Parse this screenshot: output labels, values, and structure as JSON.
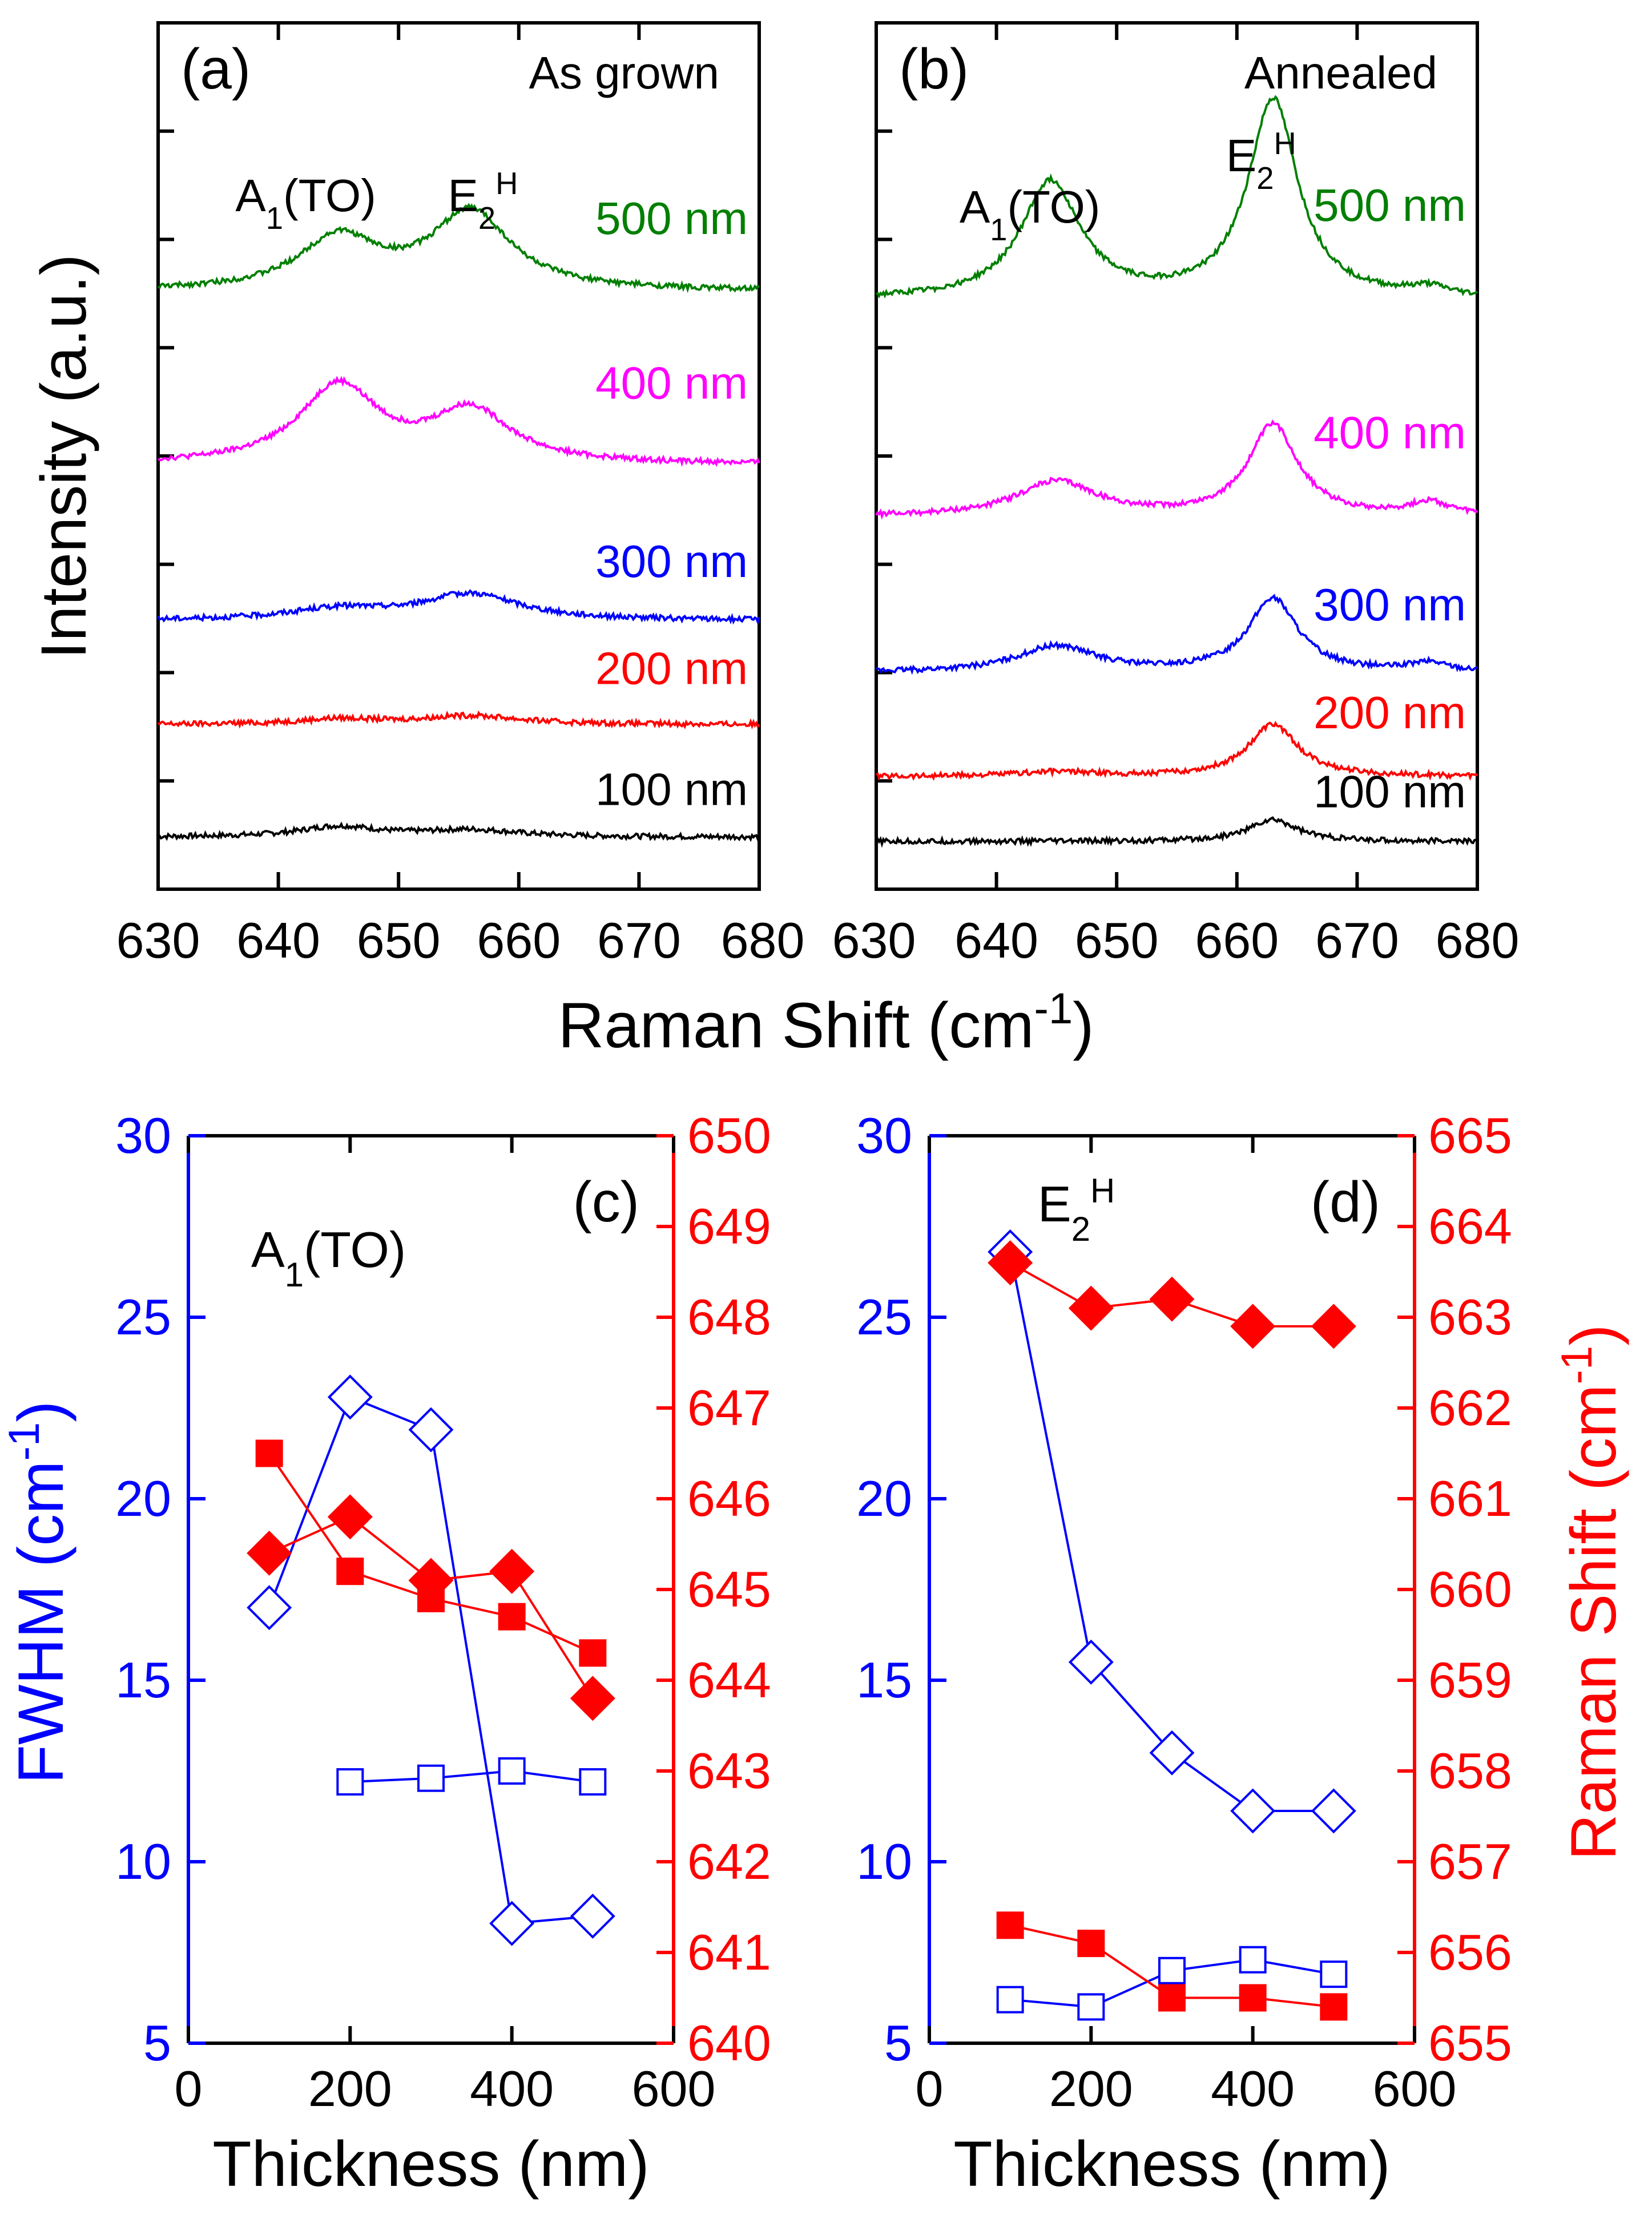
{
  "chart_data": [
    {
      "id": "a",
      "type": "line",
      "panel_label": "(a)",
      "condition": "As grown",
      "x_ticks": [
        "630",
        "640",
        "650",
        "660",
        "670",
        "680"
      ],
      "xlim": [
        630,
        680
      ],
      "xlabel": "Raman Shift (cm",
      "xlabel_sup": "-1",
      "xlabel_end": ")",
      "ylabel": "Intensity (a.u.)",
      "peak_labels": [
        {
          "base": "A",
          "sub": "1",
          "rest": "(TO)",
          "x": 644.5
        },
        {
          "base": "E",
          "sub": "2",
          "sup": "H",
          "x": 656
        }
      ],
      "series": [
        {
          "name": "100 nm",
          "color": "#000000",
          "baseline": 0.06,
          "peaks": [
            {
              "center": 645,
              "height": 0.012,
              "width": 4
            },
            {
              "center": 656,
              "height": 0.008,
              "width": 5
            }
          ]
        },
        {
          "name": "200 nm",
          "color": "#ff0000",
          "baseline": 0.19,
          "peaks": [
            {
              "center": 645,
              "height": 0.006,
              "width": 4
            },
            {
              "center": 656,
              "height": 0.01,
              "width": 5
            }
          ]
        },
        {
          "name": "300 nm",
          "color": "#0000ff",
          "baseline": 0.31,
          "peaks": [
            {
              "center": 645,
              "height": 0.012,
              "width": 5
            },
            {
              "center": 656,
              "height": 0.03,
              "width": 5
            }
          ]
        },
        {
          "name": "400 nm",
          "color": "#ff00ff",
          "baseline": 0.49,
          "peaks": [
            {
              "center": 645,
              "height": 0.09,
              "width": 4
            },
            {
              "center": 656,
              "height": 0.06,
              "width": 4
            }
          ]
        },
        {
          "name": "500 nm",
          "color": "#007f00",
          "baseline": 0.69,
          "peaks": [
            {
              "center": 645,
              "height": 0.06,
              "width": 4
            },
            {
              "center": 656,
              "height": 0.09,
              "width": 4
            }
          ]
        }
      ]
    },
    {
      "id": "b",
      "type": "line",
      "panel_label": "(b)",
      "condition": "Annealed",
      "x_ticks": [
        "630",
        "640",
        "650",
        "660",
        "670",
        "680"
      ],
      "xlim": [
        630,
        680
      ],
      "peak_labels": [
        {
          "base": "A",
          "sub": "1",
          "rest": "(TO)",
          "x": 645
        },
        {
          "base": "E",
          "sub": "2",
          "sup": "H",
          "x": 661
        }
      ],
      "series": [
        {
          "name": "100 nm",
          "color": "#000000",
          "baseline": 0.055,
          "peaks": [
            {
              "center": 663,
              "height": 0.025,
              "width": 2.5
            }
          ]
        },
        {
          "name": "200 nm",
          "color": "#ff0000",
          "baseline": 0.13,
          "peaks": [
            {
              "center": 645,
              "height": 0.005,
              "width": 4
            },
            {
              "center": 663,
              "height": 0.06,
              "width": 2.5
            }
          ]
        },
        {
          "name": "300 nm",
          "color": "#0000ff",
          "baseline": 0.25,
          "peaks": [
            {
              "center": 645,
              "height": 0.03,
              "width": 4
            },
            {
              "center": 663,
              "height": 0.085,
              "width": 2.5
            },
            {
              "center": 676,
              "height": 0.01,
              "width": 2
            }
          ]
        },
        {
          "name": "400 nm",
          "color": "#ff00ff",
          "baseline": 0.43,
          "peaks": [
            {
              "center": 645,
              "height": 0.04,
              "width": 4
            },
            {
              "center": 663,
              "height": 0.105,
              "width": 2.5
            },
            {
              "center": 676,
              "height": 0.015,
              "width": 2
            }
          ]
        },
        {
          "name": "500 nm",
          "color": "#007f00",
          "baseline": 0.68,
          "peaks": [
            {
              "center": 644.5,
              "height": 0.135,
              "width": 3
            },
            {
              "center": 663,
              "height": 0.23,
              "width": 2.5
            },
            {
              "center": 676,
              "height": 0.01,
              "width": 2
            }
          ]
        }
      ]
    },
    {
      "id": "c",
      "type": "scatter",
      "panel_label": "(c)",
      "title": {
        "base": "A",
        "sub": "1",
        "rest": "(TO)"
      },
      "xlabel": "Thickness (nm)",
      "xlim": [
        0,
        600
      ],
      "x_ticks": [
        "0",
        "200",
        "400",
        "600"
      ],
      "ylabel_left": "FWHM (cm",
      "ylabel_left_sup": "-1",
      "ylabel_left_end": ")",
      "ylim_left": [
        5,
        30
      ],
      "y_ticks_left": [
        "5",
        "10",
        "15",
        "20",
        "25",
        "30"
      ],
      "ylim_right": [
        640,
        650
      ],
      "y_ticks_right": [
        "640",
        "641",
        "642",
        "643",
        "644",
        "645",
        "646",
        "647",
        "648",
        "649",
        "650"
      ],
      "series": [
        {
          "name": "FWHM as grown",
          "axis": "left",
          "marker": "diamond-open",
          "color": "#0000ff",
          "x": [
            100,
            200,
            300,
            400,
            500
          ],
          "y": [
            17.0,
            22.8,
            21.9,
            8.3,
            8.5
          ]
        },
        {
          "name": "FWHM annealed",
          "axis": "left",
          "marker": "square-open",
          "color": "#0000ff",
          "x": [
            200,
            300,
            400,
            500
          ],
          "y": [
            12.2,
            12.3,
            12.5,
            12.2
          ]
        },
        {
          "name": "Raman shift as grown",
          "axis": "right",
          "marker": "diamond-filled",
          "color": "#ff0000",
          "x": [
            100,
            200,
            300,
            400,
            500
          ],
          "y": [
            645.4,
            645.8,
            645.1,
            645.2,
            643.8
          ]
        },
        {
          "name": "Raman shift annealed",
          "axis": "right",
          "marker": "square-filled",
          "color": "#ff0000",
          "x": [
            100,
            200,
            300,
            400,
            500
          ],
          "y": [
            646.5,
            645.2,
            644.9,
            644.7,
            644.3
          ]
        }
      ]
    },
    {
      "id": "d",
      "type": "scatter",
      "panel_label": "(d)",
      "title": {
        "base": "E",
        "sub": "2",
        "sup": "H"
      },
      "xlabel": "Thickness (nm)",
      "xlim": [
        0,
        600
      ],
      "x_ticks": [
        "0",
        "200",
        "400",
        "600"
      ],
      "ylim_left": [
        5,
        30
      ],
      "y_ticks_left": [
        "5",
        "10",
        "15",
        "20",
        "25",
        "30"
      ],
      "ylabel_right": "Raman Shift (cm",
      "ylabel_right_sup": "-1",
      "ylabel_right_end": ")",
      "ylim_right": [
        655,
        665
      ],
      "y_ticks_right": [
        "655",
        "656",
        "657",
        "658",
        "659",
        "660",
        "661",
        "662",
        "663",
        "664",
        "665"
      ],
      "series": [
        {
          "name": "FWHM as grown",
          "axis": "left",
          "marker": "diamond-open",
          "color": "#0000ff",
          "x": [
            100,
            200,
            300,
            400,
            500
          ],
          "y": [
            26.8,
            15.5,
            13.0,
            11.4,
            11.4
          ]
        },
        {
          "name": "FWHM annealed",
          "axis": "left",
          "marker": "square-open",
          "color": "#0000ff",
          "x": [
            100,
            200,
            300,
            400,
            500
          ],
          "y": [
            6.2,
            6.0,
            7.0,
            7.3,
            6.9
          ]
        },
        {
          "name": "Raman shift as grown",
          "axis": "right",
          "marker": "diamond-filled",
          "color": "#ff0000",
          "x": [
            100,
            200,
            300,
            400,
            500
          ],
          "y": [
            663.6,
            663.1,
            663.2,
            662.9,
            662.9
          ]
        },
        {
          "name": "Raman shift annealed",
          "axis": "right",
          "marker": "square-filled",
          "color": "#ff0000",
          "x": [
            100,
            200,
            300,
            400,
            500
          ],
          "y": [
            656.3,
            656.1,
            655.5,
            655.5,
            655.4
          ]
        }
      ]
    }
  ]
}
